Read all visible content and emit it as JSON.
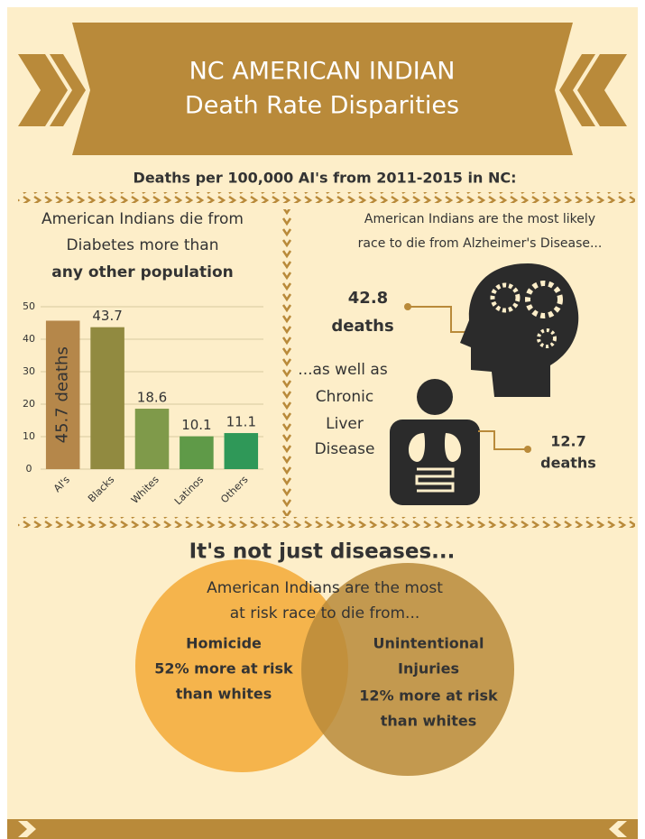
{
  "header": {
    "title": [
      "NC AMERICAN INDIAN",
      "Death Rate Disparities"
    ]
  },
  "subtitle": "Deaths per 100,000 AI's from 2011-2015 in NC:",
  "diabetes": {
    "heading": [
      "American Indians die from",
      "Diabetes more than",
      "any other population"
    ]
  },
  "chart_data": {
    "type": "bar",
    "categories": [
      "AI's",
      "Blacks",
      "Whites",
      "Latinos",
      "Others"
    ],
    "values": [
      45.7,
      43.7,
      18.6,
      10.1,
      11.1
    ],
    "value_labels": [
      "45.7 deaths",
      "43.7",
      "18.6",
      "10.1",
      "11.1"
    ],
    "colors": [
      "#b5874a",
      "#918a40",
      "#7f9a4a",
      "#5f9a48",
      "#2f9858"
    ],
    "ylim": [
      0,
      50
    ],
    "yticks": [
      0,
      10,
      20,
      30,
      40,
      50
    ],
    "grid": true
  },
  "alzheimers": {
    "text": [
      "American Indians are the most likely",
      "race to die from Alzheimer's Disease..."
    ],
    "stat": [
      "42.8",
      "deaths"
    ]
  },
  "liver": {
    "text": [
      "...as well as",
      "Chronic",
      "Liver",
      "Disease"
    ],
    "stat": [
      "12.7",
      "deaths"
    ]
  },
  "risks": {
    "heading": "It's not just diseases...",
    "intro": [
      "American Indians are the most",
      "at risk race to die from..."
    ],
    "homicide": [
      "Homicide",
      "52% more at risk",
      "than whites"
    ],
    "injuries": [
      "Unintentional",
      "Injuries",
      "12% more at risk",
      "than whites"
    ]
  }
}
